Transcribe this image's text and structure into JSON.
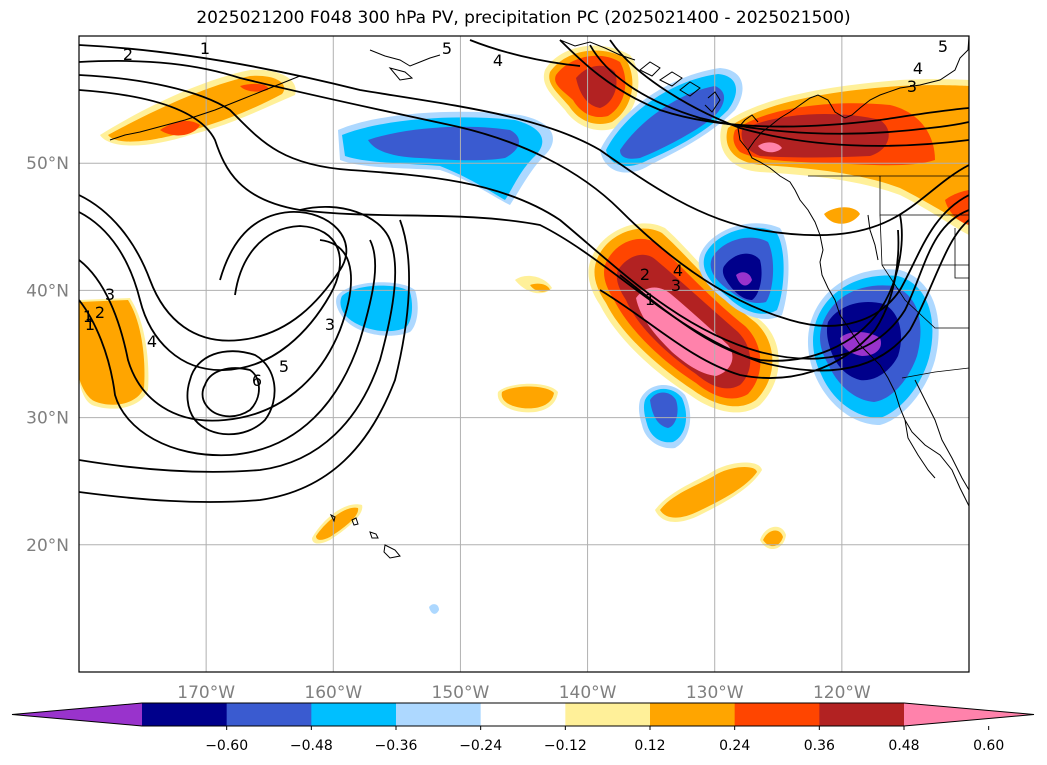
{
  "title": "2025021200 F048 300 hPa PV, precipitation PC (2025021400 - 2025021500)",
  "map": {
    "projection": "PlateCarree",
    "lon_range": [
      -180,
      -110
    ],
    "lat_range": [
      10,
      60
    ],
    "lat_ticks": [
      {
        "value": 50,
        "label": "50°N"
      },
      {
        "value": 40,
        "label": "40°N"
      },
      {
        "value": 30,
        "label": "30°N"
      },
      {
        "value": 20,
        "label": "20°N"
      }
    ],
    "lon_ticks": [
      {
        "value": -170,
        "label": "170°W"
      },
      {
        "value": -160,
        "label": "160°W"
      },
      {
        "value": -150,
        "label": "150°W"
      },
      {
        "value": -140,
        "label": "140°W"
      },
      {
        "value": -130,
        "label": "130°W"
      },
      {
        "value": -120,
        "label": "120°W"
      }
    ],
    "gridlines": true
  },
  "contour_labels": [
    "2",
    "1",
    "5",
    "4",
    "5",
    "4",
    "3",
    "2",
    "1",
    "4",
    "3",
    "6",
    "5",
    "3",
    "2",
    "1",
    "4",
    "3",
    "1"
  ],
  "colorbar": {
    "orientation": "horizontal",
    "extend": "both",
    "colors": [
      "#9933cc",
      "#00008b",
      "#3a5bd0",
      "#00bfff",
      "#add8ff",
      "#ffffff",
      "#fff099",
      "#ffa500",
      "#ff4500",
      "#b22222",
      "#ff82ab"
    ],
    "tick_labels": [
      "−0.60",
      "−0.48",
      "−0.36",
      "−0.24",
      "−0.12",
      "0.12",
      "0.24",
      "0.36",
      "0.48",
      "0.60"
    ]
  }
}
